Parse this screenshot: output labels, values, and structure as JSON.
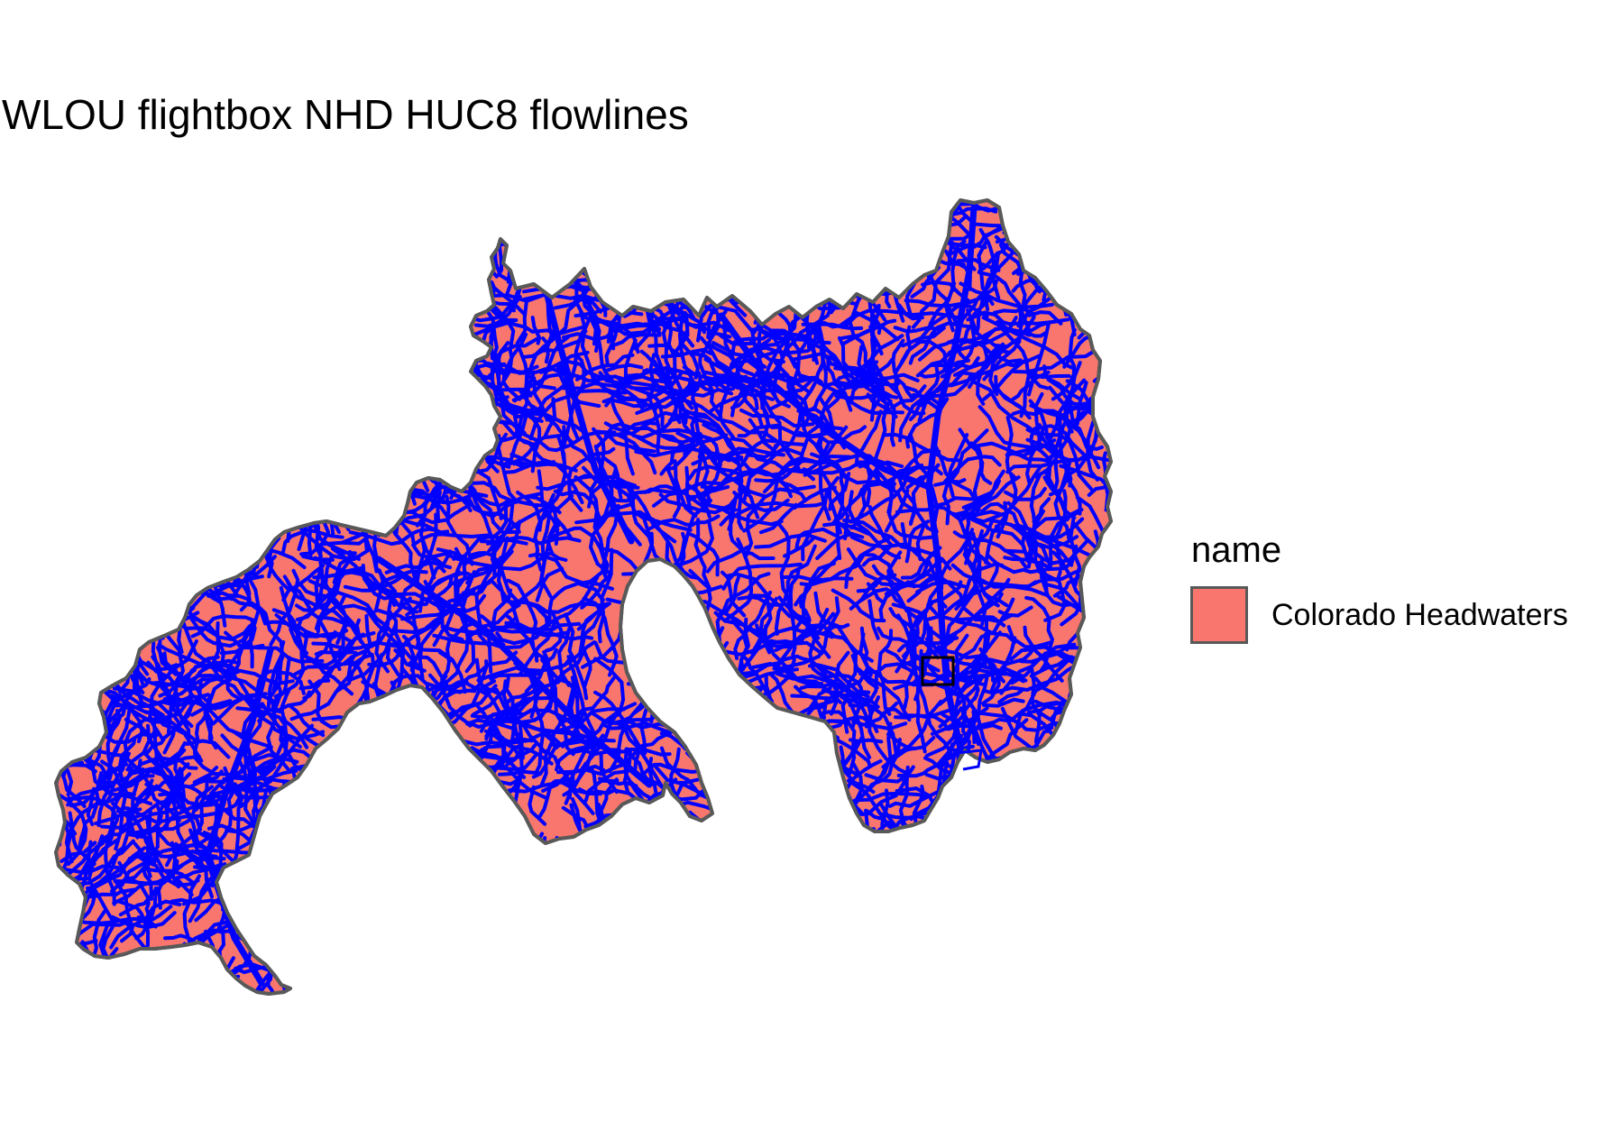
{
  "title": "WLOU flightbox NHD HUC8 flowlines",
  "legend": {
    "title": "name",
    "items": [
      {
        "label": "Colorado Headwaters",
        "fill": "#F8766D"
      }
    ]
  },
  "colors": {
    "huc_fill": "#F8766D",
    "huc_outline": "#595959",
    "flowlines": "#0000FF",
    "flightbox_outline": "#000000",
    "background": "#FFFFFF"
  },
  "chart_data": {
    "type": "map",
    "title": "WLOU flightbox NHD HUC8 flowlines",
    "layers": [
      {
        "name": "Colorado Headwaters",
        "kind": "HUC8 polygon",
        "fill": "#F8766D",
        "outline": "#595959"
      },
      {
        "name": "NHD flowlines",
        "kind": "lines",
        "color": "#0000FF"
      },
      {
        "name": "WLOU flightbox",
        "kind": "rectangle",
        "fill": "none",
        "outline": "#000000"
      }
    ],
    "legend_position": "right",
    "grid": false
  }
}
